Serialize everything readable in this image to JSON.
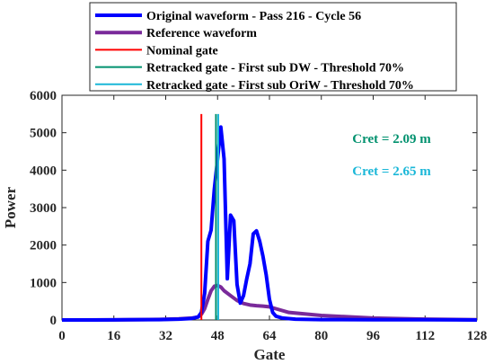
{
  "chart_data": {
    "type": "line",
    "xlabel": "Gate",
    "ylabel": "Power",
    "xlim": [
      0,
      128
    ],
    "ylim": [
      0,
      6000
    ],
    "xticks": [
      0,
      16,
      32,
      48,
      64,
      80,
      96,
      112,
      128
    ],
    "yticks": [
      0,
      1000,
      2000,
      3000,
      4000,
      5000,
      6000
    ],
    "grid": false,
    "legend_position": "top",
    "series": [
      {
        "name": "Original waveform - Pass 216 - Cycle 56",
        "color": "#0000ff",
        "x": [
          0,
          10,
          20,
          30,
          36,
          40,
          42,
          43,
          44,
          45,
          46,
          47,
          48,
          49,
          50,
          51,
          52,
          53,
          54,
          55,
          56,
          57,
          58,
          59,
          60,
          61,
          62,
          63,
          64,
          65,
          66,
          68,
          72,
          80,
          96,
          112,
          128
        ],
        "y": [
          0,
          0,
          5,
          10,
          20,
          40,
          80,
          200,
          700,
          2100,
          2400,
          3500,
          4300,
          5150,
          4300,
          1100,
          2800,
          2650,
          950,
          450,
          650,
          1100,
          1500,
          2300,
          2380,
          2100,
          1700,
          1200,
          550,
          200,
          100,
          50,
          20,
          10,
          5,
          5,
          0
        ]
      },
      {
        "name": "Reference waveform",
        "color": "#7a2a9a",
        "x": [
          0,
          20,
          30,
          36,
          40,
          42,
          43,
          44,
          45,
          46,
          47,
          48,
          49,
          50,
          52,
          54,
          56,
          58,
          60,
          62,
          64,
          66,
          70,
          80,
          96,
          112,
          128
        ],
        "y": [
          0,
          5,
          15,
          30,
          50,
          80,
          150,
          300,
          550,
          780,
          900,
          920,
          880,
          780,
          650,
          520,
          440,
          400,
          380,
          370,
          350,
          300,
          200,
          120,
          50,
          20,
          5
        ]
      },
      {
        "name": "Nominal gate",
        "color": "#ff0000",
        "x": [
          43,
          43
        ],
        "y": [
          0,
          5500
        ]
      },
      {
        "name": "Retracked gate - First sub DW - Threshold 70%",
        "color": "#00916e",
        "x": [
          47.5,
          47.5
        ],
        "y": [
          0,
          5500
        ]
      },
      {
        "name": "Retracked gate - First sub OriW - Threshold 70%",
        "color": "#1ab7d8",
        "x": [
          48.2,
          48.2
        ],
        "y": [
          0,
          5500
        ]
      }
    ],
    "annotations": [
      {
        "text": "Cret = 2.09 m",
        "color": "#00916e"
      },
      {
        "text": "Cret = 2.65 m",
        "color": "#1ab7d8"
      }
    ]
  }
}
